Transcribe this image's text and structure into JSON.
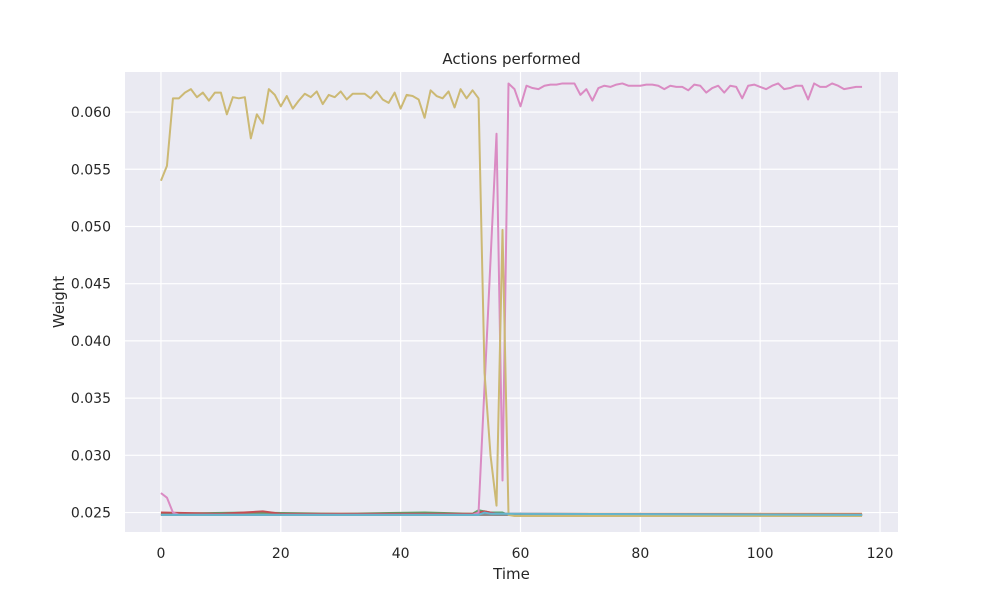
{
  "chart_data": {
    "type": "line",
    "title": "Actions performed",
    "xlabel": "Time",
    "ylabel": "Weight",
    "xlim": [
      -6,
      123
    ],
    "ylim": [
      0.0233,
      0.0635
    ],
    "x_ticks": [
      0,
      20,
      40,
      60,
      80,
      100,
      120
    ],
    "y_ticks": [
      0.025,
      0.03,
      0.035,
      0.04,
      0.045,
      0.05,
      0.055,
      0.06
    ],
    "x_tick_labels": [
      "0",
      "20",
      "40",
      "60",
      "80",
      "100",
      "120"
    ],
    "y_tick_labels": [
      "0.025",
      "0.030",
      "0.035",
      "0.040",
      "0.045",
      "0.050",
      "0.055",
      "0.060"
    ],
    "grid": true,
    "background": "#eaeaf2",
    "series": [
      {
        "color": "#4c72b0",
        "points": [
          [
            0,
            0.0248
          ],
          [
            20,
            0.0248
          ],
          [
            52,
            0.0248
          ],
          [
            54,
            0.0249
          ],
          [
            56,
            0.0248
          ],
          [
            117,
            0.0248
          ]
        ]
      },
      {
        "color": "#dd8452",
        "points": [
          [
            0,
            0.0249
          ],
          [
            17,
            0.0249
          ],
          [
            52,
            0.0249
          ],
          [
            54,
            0.025
          ],
          [
            56,
            0.0249
          ],
          [
            117,
            0.0249
          ]
        ]
      },
      {
        "color": "#55a868",
        "points": [
          [
            0,
            0.0249
          ],
          [
            15,
            0.025
          ],
          [
            30,
            0.0249
          ],
          [
            44,
            0.025
          ],
          [
            52,
            0.0249
          ],
          [
            53,
            0.0252
          ],
          [
            55,
            0.025
          ],
          [
            57,
            0.025
          ],
          [
            58,
            0.0248
          ],
          [
            117,
            0.0248
          ]
        ]
      },
      {
        "color": "#c44e52",
        "points": [
          [
            0,
            0.025
          ],
          [
            10,
            0.0249
          ],
          [
            17,
            0.0251
          ],
          [
            20,
            0.0249
          ],
          [
            52,
            0.0249
          ],
          [
            54,
            0.0251
          ],
          [
            56,
            0.0249
          ],
          [
            117,
            0.0248
          ]
        ]
      },
      {
        "color": "#8172b3",
        "points": [
          [
            0,
            0.0248
          ],
          [
            52,
            0.0248
          ],
          [
            54,
            0.0249
          ],
          [
            117,
            0.0248
          ]
        ]
      },
      {
        "color": "#937860",
        "points": [
          [
            0,
            0.0248
          ],
          [
            52,
            0.0248
          ],
          [
            117,
            0.0248
          ]
        ]
      },
      {
        "color": "#da8bc3",
        "points": [
          [
            0,
            0.0267
          ],
          [
            1,
            0.0263
          ],
          [
            2,
            0.025
          ],
          [
            3,
            0.0248
          ],
          [
            52,
            0.0248
          ],
          [
            53,
            0.025
          ],
          [
            56,
            0.0581
          ],
          [
            57,
            0.0278
          ],
          [
            58,
            0.0625
          ],
          [
            59,
            0.062
          ],
          [
            60,
            0.0605
          ],
          [
            61,
            0.0623
          ],
          [
            62,
            0.0621
          ],
          [
            63,
            0.062
          ],
          [
            64,
            0.0623
          ],
          [
            65,
            0.0624
          ],
          [
            66,
            0.0624
          ],
          [
            67,
            0.0625
          ],
          [
            68,
            0.0625
          ],
          [
            69,
            0.0625
          ],
          [
            70,
            0.0615
          ],
          [
            71,
            0.062
          ],
          [
            72,
            0.061
          ],
          [
            73,
            0.0621
          ],
          [
            74,
            0.0623
          ],
          [
            75,
            0.0622
          ],
          [
            76,
            0.0624
          ],
          [
            77,
            0.0625
          ],
          [
            78,
            0.0623
          ],
          [
            79,
            0.0623
          ],
          [
            80,
            0.0623
          ],
          [
            81,
            0.0624
          ],
          [
            82,
            0.0624
          ],
          [
            83,
            0.0623
          ],
          [
            84,
            0.062
          ],
          [
            85,
            0.0623
          ],
          [
            86,
            0.0622
          ],
          [
            87,
            0.0622
          ],
          [
            88,
            0.0619
          ],
          [
            89,
            0.0624
          ],
          [
            90,
            0.0623
          ],
          [
            91,
            0.0617
          ],
          [
            92,
            0.0621
          ],
          [
            93,
            0.0623
          ],
          [
            94,
            0.0617
          ],
          [
            95,
            0.0623
          ],
          [
            96,
            0.0622
          ],
          [
            97,
            0.0612
          ],
          [
            98,
            0.0623
          ],
          [
            99,
            0.0624
          ],
          [
            100,
            0.0622
          ],
          [
            101,
            0.062
          ],
          [
            102,
            0.0623
          ],
          [
            103,
            0.0625
          ],
          [
            104,
            0.062
          ],
          [
            105,
            0.0621
          ],
          [
            106,
            0.0623
          ],
          [
            107,
            0.0623
          ],
          [
            108,
            0.0611
          ],
          [
            109,
            0.0625
          ],
          [
            110,
            0.0622
          ],
          [
            111,
            0.0622
          ],
          [
            112,
            0.0625
          ],
          [
            113,
            0.0623
          ],
          [
            114,
            0.062
          ],
          [
            115,
            0.0621
          ],
          [
            116,
            0.0622
          ],
          [
            117,
            0.0622
          ]
        ]
      },
      {
        "color": "#8c8c8c",
        "points": [
          [
            0,
            0.0248
          ],
          [
            117,
            0.0248
          ]
        ]
      },
      {
        "color": "#ccb974",
        "points": [
          [
            0,
            0.054
          ],
          [
            1,
            0.0553
          ],
          [
            2,
            0.0612
          ],
          [
            3,
            0.0612
          ],
          [
            4,
            0.0617
          ],
          [
            5,
            0.062
          ],
          [
            6,
            0.0613
          ],
          [
            7,
            0.0617
          ],
          [
            8,
            0.061
          ],
          [
            9,
            0.0617
          ],
          [
            10,
            0.0617
          ],
          [
            11,
            0.0598
          ],
          [
            12,
            0.0613
          ],
          [
            13,
            0.0612
          ],
          [
            14,
            0.0613
          ],
          [
            15,
            0.0577
          ],
          [
            16,
            0.0598
          ],
          [
            17,
            0.059
          ],
          [
            18,
            0.062
          ],
          [
            19,
            0.0615
          ],
          [
            20,
            0.0605
          ],
          [
            21,
            0.0614
          ],
          [
            22,
            0.0603
          ],
          [
            23,
            0.061
          ],
          [
            24,
            0.0616
          ],
          [
            25,
            0.0613
          ],
          [
            26,
            0.0618
          ],
          [
            27,
            0.0607
          ],
          [
            28,
            0.0615
          ],
          [
            29,
            0.0613
          ],
          [
            30,
            0.0618
          ],
          [
            31,
            0.0611
          ],
          [
            32,
            0.0616
          ],
          [
            33,
            0.0616
          ],
          [
            34,
            0.0616
          ],
          [
            35,
            0.0612
          ],
          [
            36,
            0.0618
          ],
          [
            37,
            0.0611
          ],
          [
            38,
            0.0608
          ],
          [
            39,
            0.0617
          ],
          [
            40,
            0.0603
          ],
          [
            41,
            0.0615
          ],
          [
            42,
            0.0614
          ],
          [
            43,
            0.0611
          ],
          [
            44,
            0.0595
          ],
          [
            45,
            0.0619
          ],
          [
            46,
            0.0614
          ],
          [
            47,
            0.0612
          ],
          [
            48,
            0.0618
          ],
          [
            49,
            0.0604
          ],
          [
            50,
            0.062
          ],
          [
            51,
            0.0612
          ],
          [
            52,
            0.0619
          ],
          [
            53,
            0.0612
          ],
          [
            54,
            0.0372
          ],
          [
            55,
            0.03
          ],
          [
            56,
            0.0256
          ],
          [
            57,
            0.0497
          ],
          [
            58,
            0.0248
          ],
          [
            59,
            0.0247
          ],
          [
            117,
            0.0247
          ]
        ]
      },
      {
        "color": "#64b5cd",
        "points": [
          [
            0,
            0.0248
          ],
          [
            53,
            0.0248
          ],
          [
            54,
            0.025
          ],
          [
            55,
            0.0249
          ],
          [
            117,
            0.0248
          ]
        ]
      }
    ]
  }
}
